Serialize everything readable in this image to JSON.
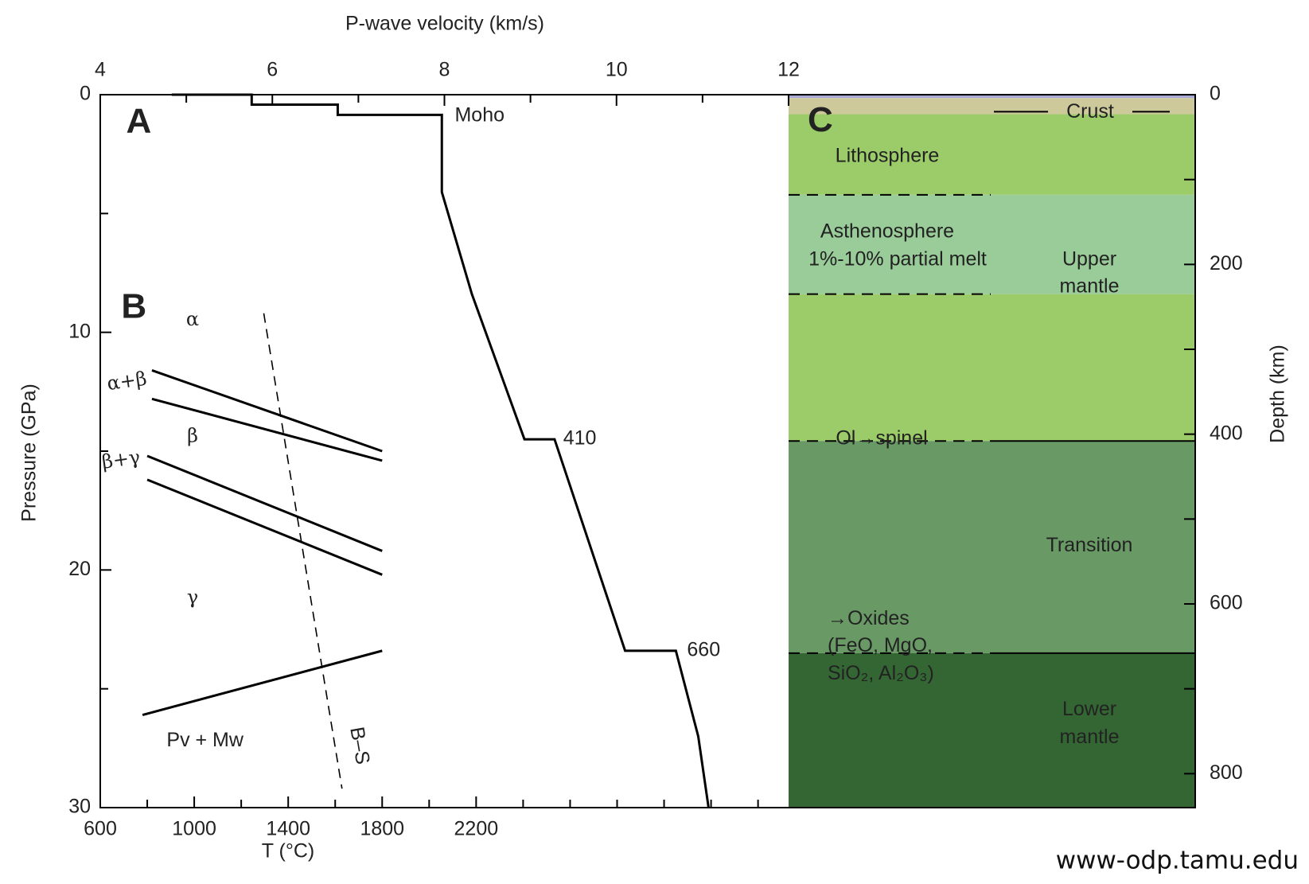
{
  "chart_data": [
    {
      "type": "line",
      "title": "P-wave velocity (km/s)",
      "y_label": "Pressure (GPa)",
      "x": [
        4.83,
        5.76,
        5.76,
        6.76,
        6.76,
        7.97,
        7.97,
        8.32,
        8.93,
        9.28,
        10.1,
        10.69,
        10.95,
        11.07
      ],
      "series": [
        {
          "color": "#000000",
          "values": [
            0,
            0,
            0.42,
            0.42,
            0.85,
            0.85,
            4.1,
            8.4,
            14.5,
            14.5,
            23.4,
            23.4,
            27,
            30
          ]
        }
      ],
      "xlim": [
        4,
        12
      ],
      "xticks": [
        4,
        6,
        8,
        10,
        12
      ],
      "xminor": [
        5,
        7,
        9,
        11
      ],
      "ylim": [
        0,
        30
      ],
      "yticks": [
        0,
        10,
        20,
        30
      ],
      "yminor": [
        5,
        15,
        25
      ],
      "annotations": [
        "A",
        "Moho",
        "410",
        "660"
      ]
    },
    {
      "type": "line",
      "x_label": "T (°C)",
      "xlim": [
        600,
        3530
      ],
      "xticks": [
        600,
        1000,
        1400,
        1800,
        2200
      ],
      "xminor": [
        800,
        1200,
        1600,
        2000,
        2400,
        2600,
        2800,
        3000,
        3200,
        3400
      ],
      "ylim": [
        0,
        30
      ],
      "series": [
        {
          "color": "#000000",
          "x": [
            820,
            1800
          ],
          "values": [
            11.6,
            15.0
          ]
        },
        {
          "color": "#000000",
          "x": [
            820,
            1800
          ],
          "values": [
            12.8,
            15.4
          ]
        },
        {
          "color": "#000000",
          "x": [
            800,
            1800
          ],
          "values": [
            15.2,
            19.2
          ]
        },
        {
          "color": "#000000",
          "x": [
            800,
            1800
          ],
          "values": [
            16.2,
            20.2
          ]
        },
        {
          "color": "#000000",
          "x": [
            780,
            1800
          ],
          "values": [
            26.1,
            23.4
          ]
        },
        {
          "color": "#000000",
          "x": [
            1296,
            1629
          ],
          "values": [
            9.2,
            29.2
          ],
          "dashed": true
        }
      ],
      "annotations": [
        "B",
        "α",
        "α+β",
        "β",
        "β+γ",
        "γ",
        "Pv + Mw",
        "B–S"
      ]
    },
    {
      "type": "layers",
      "y2_label": "Depth (km)",
      "y2lim": [
        0,
        840
      ],
      "y2ticks": [
        0,
        200,
        400,
        600,
        800
      ],
      "y2minor": [
        100,
        300,
        500,
        700
      ],
      "layers": [
        {
          "top": 0,
          "bottom": 4,
          "color": "#a9a9d6"
        },
        {
          "top": 4,
          "bottom": 23,
          "color": "#cdc99b"
        },
        {
          "top": 23,
          "bottom": 118,
          "color": "#9ccc6a"
        },
        {
          "top": 118,
          "bottom": 235,
          "color": "#99cc99"
        },
        {
          "top": 235,
          "bottom": 408,
          "color": "#9ccc6a"
        },
        {
          "top": 408,
          "bottom": 658,
          "color": "#699a66"
        },
        {
          "top": 658,
          "bottom": 840,
          "color": "#346634"
        }
      ],
      "annotations": [
        "C",
        "Crust",
        "Lithosphere",
        "Asthenosphere",
        "1%-10% partial melt",
        "Upper",
        "mantle",
        "Ol→spinel",
        "Transition",
        "→Oxides",
        "(FeO, MgO,",
        "SiO₂, Al₂O₃)",
        "Lower",
        "mantle"
      ]
    }
  ],
  "source": "www-odp.tamu.edu"
}
